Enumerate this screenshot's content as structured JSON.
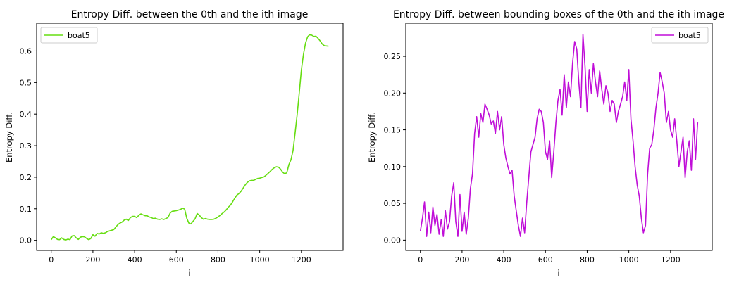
{
  "chart_data": [
    {
      "type": "line",
      "title": "Entropy Diff. between the 0th and the ith image",
      "xlabel": "i",
      "ylabel": "Entropy Diff.",
      "xlim": [
        -70,
        1400
      ],
      "ylim": [
        -0.032,
        0.688
      ],
      "xticks": [
        0,
        200,
        400,
        600,
        800,
        1000,
        1200
      ],
      "xtick_labels": [
        "0",
        "200",
        "400",
        "600",
        "800",
        "1000",
        "1200"
      ],
      "yticks": [
        0.0,
        0.1,
        0.2,
        0.3,
        0.4,
        0.5,
        0.6
      ],
      "ytick_labels": [
        "0.0",
        "0.1",
        "0.2",
        "0.3",
        "0.4",
        "0.5",
        "0.6"
      ],
      "grid": false,
      "legend": "upper left",
      "series": [
        {
          "name": "boat5",
          "color": "#66dd11",
          "x": [
            0,
            10,
            20,
            30,
            40,
            50,
            60,
            70,
            80,
            90,
            100,
            110,
            120,
            130,
            140,
            150,
            160,
            170,
            180,
            190,
            200,
            210,
            220,
            230,
            240,
            250,
            260,
            270,
            280,
            290,
            300,
            310,
            320,
            330,
            340,
            350,
            360,
            370,
            380,
            390,
            400,
            410,
            420,
            430,
            440,
            450,
            460,
            470,
            480,
            490,
            500,
            510,
            520,
            530,
            540,
            550,
            560,
            570,
            580,
            590,
            600,
            610,
            620,
            630,
            640,
            650,
            660,
            670,
            680,
            690,
            700,
            710,
            720,
            730,
            740,
            750,
            760,
            770,
            780,
            790,
            800,
            810,
            820,
            830,
            840,
            850,
            860,
            870,
            880,
            890,
            900,
            910,
            920,
            930,
            940,
            950,
            960,
            970,
            980,
            990,
            1000,
            1010,
            1020,
            1030,
            1040,
            1050,
            1060,
            1070,
            1080,
            1090,
            1100,
            1110,
            1120,
            1130,
            1140,
            1150,
            1160,
            1170,
            1180,
            1190,
            1200,
            1210,
            1220,
            1230,
            1240,
            1250,
            1260,
            1270,
            1280,
            1290,
            1300,
            1310,
            1320,
            1330
          ],
          "y": [
            0.002,
            0.012,
            0.008,
            0.003,
            0.002,
            0.008,
            0.003,
            0.001,
            0.004,
            0.002,
            0.014,
            0.015,
            0.008,
            0.003,
            0.01,
            0.012,
            0.011,
            0.006,
            0.002,
            0.006,
            0.018,
            0.013,
            0.022,
            0.02,
            0.024,
            0.022,
            0.024,
            0.028,
            0.03,
            0.032,
            0.034,
            0.042,
            0.05,
            0.055,
            0.058,
            0.064,
            0.067,
            0.063,
            0.072,
            0.076,
            0.076,
            0.072,
            0.079,
            0.084,
            0.081,
            0.078,
            0.078,
            0.074,
            0.072,
            0.069,
            0.07,
            0.067,
            0.066,
            0.068,
            0.066,
            0.069,
            0.072,
            0.086,
            0.092,
            0.093,
            0.094,
            0.096,
            0.098,
            0.102,
            0.099,
            0.07,
            0.055,
            0.052,
            0.06,
            0.068,
            0.085,
            0.08,
            0.072,
            0.067,
            0.069,
            0.067,
            0.066,
            0.066,
            0.067,
            0.07,
            0.074,
            0.079,
            0.085,
            0.09,
            0.097,
            0.105,
            0.112,
            0.122,
            0.133,
            0.143,
            0.148,
            0.155,
            0.165,
            0.175,
            0.183,
            0.188,
            0.19,
            0.19,
            0.193,
            0.196,
            0.197,
            0.199,
            0.201,
            0.206,
            0.212,
            0.218,
            0.225,
            0.23,
            0.233,
            0.232,
            0.226,
            0.216,
            0.211,
            0.214,
            0.24,
            0.255,
            0.285,
            0.34,
            0.4,
            0.47,
            0.54,
            0.59,
            0.625,
            0.645,
            0.652,
            0.65,
            0.646,
            0.647,
            0.64,
            0.632,
            0.622,
            0.617,
            0.616,
            0.615
          ]
        }
      ]
    },
    {
      "type": "line",
      "title": "Entropy Diff. between bounding boxes of the 0th and the ith image",
      "xlabel": "i",
      "ylabel": "Entropy Diff.",
      "xlim": [
        -70,
        1400
      ],
      "ylim": [
        -0.014,
        0.295
      ],
      "xticks": [
        0,
        200,
        400,
        600,
        800,
        1000,
        1200
      ],
      "xtick_labels": [
        "0",
        "200",
        "400",
        "600",
        "800",
        "1000",
        "1200"
      ],
      "yticks": [
        0.0,
        0.05,
        0.1,
        0.15,
        0.2,
        0.25
      ],
      "ytick_labels": [
        "0.00",
        "0.05",
        "0.10",
        "0.15",
        "0.20",
        "0.25"
      ],
      "grid": false,
      "legend": "upper right",
      "series": [
        {
          "name": "boat5",
          "color": "#c00ed8",
          "x": [
            0,
            10,
            20,
            30,
            40,
            50,
            60,
            70,
            80,
            90,
            100,
            110,
            120,
            130,
            140,
            150,
            160,
            170,
            180,
            190,
            200,
            210,
            220,
            230,
            240,
            250,
            260,
            270,
            280,
            290,
            300,
            310,
            320,
            330,
            340,
            350,
            360,
            370,
            380,
            390,
            400,
            410,
            420,
            430,
            440,
            450,
            460,
            470,
            480,
            490,
            500,
            510,
            520,
            530,
            540,
            550,
            560,
            570,
            580,
            590,
            600,
            610,
            620,
            630,
            640,
            650,
            660,
            670,
            680,
            690,
            700,
            710,
            720,
            730,
            740,
            750,
            760,
            770,
            780,
            790,
            800,
            810,
            820,
            830,
            840,
            850,
            860,
            870,
            880,
            890,
            900,
            910,
            920,
            930,
            940,
            950,
            960,
            970,
            980,
            990,
            1000,
            1010,
            1020,
            1030,
            1040,
            1050,
            1060,
            1070,
            1080,
            1090,
            1100,
            1110,
            1120,
            1130,
            1140,
            1150,
            1160,
            1170,
            1180,
            1190,
            1200,
            1210,
            1220,
            1230,
            1240,
            1250,
            1260,
            1270,
            1280,
            1290,
            1300,
            1310,
            1320,
            1330
          ],
          "y": [
            0.012,
            0.03,
            0.052,
            0.005,
            0.038,
            0.01,
            0.045,
            0.02,
            0.035,
            0.008,
            0.028,
            0.005,
            0.04,
            0.015,
            0.025,
            0.06,
            0.078,
            0.025,
            0.005,
            0.062,
            0.012,
            0.038,
            0.008,
            0.03,
            0.07,
            0.09,
            0.145,
            0.168,
            0.14,
            0.172,
            0.16,
            0.185,
            0.178,
            0.17,
            0.158,
            0.162,
            0.145,
            0.175,
            0.15,
            0.168,
            0.13,
            0.112,
            0.1,
            0.09,
            0.095,
            0.06,
            0.04,
            0.02,
            0.005,
            0.03,
            0.01,
            0.05,
            0.085,
            0.12,
            0.13,
            0.14,
            0.165,
            0.178,
            0.175,
            0.16,
            0.12,
            0.11,
            0.135,
            0.085,
            0.12,
            0.16,
            0.19,
            0.205,
            0.17,
            0.225,
            0.18,
            0.215,
            0.195,
            0.24,
            0.27,
            0.26,
            0.215,
            0.18,
            0.28,
            0.235,
            0.175,
            0.232,
            0.2,
            0.24,
            0.215,
            0.195,
            0.23,
            0.205,
            0.185,
            0.21,
            0.2,
            0.175,
            0.19,
            0.185,
            0.16,
            0.175,
            0.185,
            0.195,
            0.215,
            0.19,
            0.232,
            0.165,
            0.135,
            0.1,
            0.075,
            0.06,
            0.03,
            0.01,
            0.02,
            0.09,
            0.125,
            0.13,
            0.15,
            0.18,
            0.2,
            0.228,
            0.215,
            0.2,
            0.16,
            0.175,
            0.15,
            0.14,
            0.165,
            0.135,
            0.1,
            0.12,
            0.14,
            0.085,
            0.12,
            0.135,
            0.095,
            0.165,
            0.11,
            0.16
          ]
        }
      ]
    }
  ]
}
